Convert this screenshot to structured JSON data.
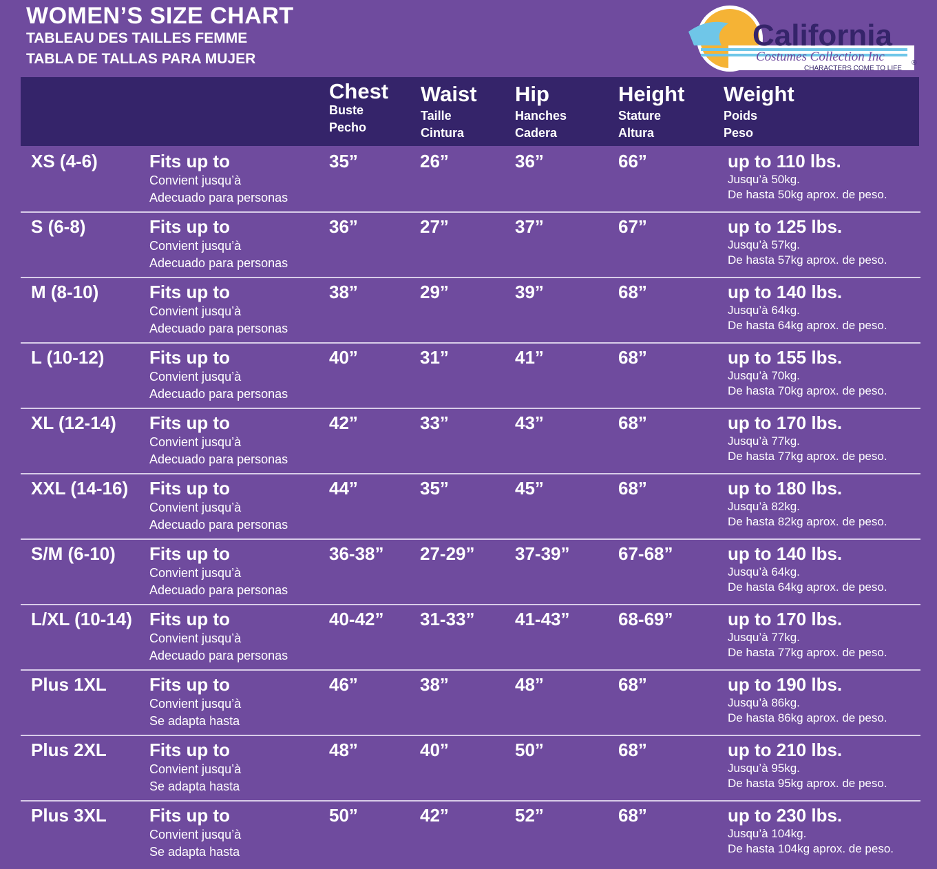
{
  "title": "WOMEN’S SIZE CHART",
  "subtitle_fr": "TABLEAU DES TAILLES FEMME",
  "subtitle_es": "TABLA DE TALLAS PARA MUJER",
  "logo": {
    "text": "California",
    "script": "Costumes Collection Inc",
    "tagline": "CHARACTERS COME TO LIFE",
    "mark": "®"
  },
  "colors": {
    "background": "#6f4b9e",
    "header": "#35246a",
    "logo_sun": "#f5b335",
    "logo_wave": "#6fc6e8",
    "logo_text": "#35246a"
  },
  "columns": [
    {
      "en": "Chest",
      "fr": "Buste",
      "es": "Pecho"
    },
    {
      "en": "Waist",
      "fr": "Taille",
      "es": "Cintura"
    },
    {
      "en": "Hip",
      "fr": "Hanches",
      "es": "Cadera"
    },
    {
      "en": "Height",
      "fr": "Stature",
      "es": "Altura"
    },
    {
      "en": "Weight",
      "fr": "Poids",
      "es": "Peso"
    }
  ],
  "rows": [
    {
      "size": "XS (4-6)",
      "fit_en": "Fits up to",
      "fit_fr": "Convient jusqu’à",
      "fit_es": "Adecuado para personas",
      "chest": "35”",
      "waist": "26”",
      "hip": "36”",
      "height": "66”",
      "w_en": "up to 110 lbs.",
      "w_fr": "Jusqu’à 50kg.",
      "w_es": "De hasta 50kg aprox. de peso."
    },
    {
      "size": "S (6-8)",
      "fit_en": "Fits up to",
      "fit_fr": "Convient jusqu’à",
      "fit_es": "Adecuado para personas",
      "chest": "36”",
      "waist": "27”",
      "hip": "37”",
      "height": "67”",
      "w_en": "up to 125 lbs.",
      "w_fr": "Jusqu’à 57kg.",
      "w_es": "De hasta 57kg aprox. de peso."
    },
    {
      "size": "M (8-10)",
      "fit_en": "Fits up to",
      "fit_fr": "Convient jusqu’à",
      "fit_es": "Adecuado para personas",
      "chest": "38”",
      "waist": "29”",
      "hip": "39”",
      "height": "68”",
      "w_en": "up to 140 lbs.",
      "w_fr": "Jusqu’à 64kg.",
      "w_es": "De hasta 64kg aprox. de peso."
    },
    {
      "size": "L (10-12)",
      "fit_en": "Fits up to",
      "fit_fr": "Convient jusqu’à",
      "fit_es": "Adecuado para personas",
      "chest": "40”",
      "waist": "31”",
      "hip": "41”",
      "height": "68”",
      "w_en": "up to 155 lbs.",
      "w_fr": "Jusqu’à 70kg.",
      "w_es": "De hasta 70kg aprox. de peso."
    },
    {
      "size": "XL (12-14)",
      "fit_en": "Fits up to",
      "fit_fr": "Convient jusqu’à",
      "fit_es": "Adecuado para personas",
      "chest": "42”",
      "waist": "33”",
      "hip": "43”",
      "height": "68”",
      "w_en": "up to 170 lbs.",
      "w_fr": "Jusqu’à 77kg.",
      "w_es": "De hasta 77kg aprox. de peso."
    },
    {
      "size": "XXL (14-16)",
      "fit_en": "Fits up to",
      "fit_fr": "Convient jusqu’à",
      "fit_es": "Adecuado para personas",
      "chest": "44”",
      "waist": "35”",
      "hip": "45”",
      "height": "68”",
      "w_en": "up to 180 lbs.",
      "w_fr": "Jusqu’à 82kg.",
      "w_es": "De hasta 82kg aprox. de peso."
    },
    {
      "size": "S/M (6-10)",
      "fit_en": "Fits up to",
      "fit_fr": "Convient jusqu’à",
      "fit_es": "Adecuado para personas",
      "chest": "36-38”",
      "waist": "27-29”",
      "hip": "37-39”",
      "height": "67-68”",
      "w_en": "up to 140 lbs.",
      "w_fr": "Jusqu’à 64kg.",
      "w_es": "De hasta 64kg aprox. de peso."
    },
    {
      "size": "L/XL (10-14)",
      "fit_en": "Fits up to",
      "fit_fr": "Convient jusqu’à",
      "fit_es": "Adecuado para personas",
      "chest": "40-42”",
      "waist": "31-33”",
      "hip": "41-43”",
      "height": "68-69”",
      "w_en": "up to 170 lbs.",
      "w_fr": "Jusqu’à 77kg.",
      "w_es": "De hasta 77kg aprox. de peso."
    },
    {
      "size": "Plus 1XL",
      "fit_en": "Fits up to",
      "fit_fr": "Convient jusqu’à",
      "fit_es": "Se adapta hasta",
      "chest": "46”",
      "waist": "38”",
      "hip": "48”",
      "height": "68”",
      "w_en": "up to 190 lbs.",
      "w_fr": "Jusqu’à 86kg.",
      "w_es": "De hasta 86kg aprox. de peso."
    },
    {
      "size": "Plus 2XL",
      "fit_en": "Fits up to",
      "fit_fr": "Convient jusqu’à",
      "fit_es": "Se adapta hasta",
      "chest": "48”",
      "waist": "40”",
      "hip": "50”",
      "height": "68”",
      "w_en": "up to 210 lbs.",
      "w_fr": "Jusqu’à 95kg.",
      "w_es": "De hasta 95kg aprox. de peso."
    },
    {
      "size": "Plus 3XL",
      "fit_en": "Fits up to",
      "fit_fr": "Convient jusqu’à",
      "fit_es": "Se adapta hasta",
      "chest": "50”",
      "waist": "42”",
      "hip": "52”",
      "height": "68”",
      "w_en": "up to 230 lbs.",
      "w_fr": "Jusqu’à 104kg.",
      "w_es": "De hasta 104kg aprox. de peso."
    }
  ]
}
